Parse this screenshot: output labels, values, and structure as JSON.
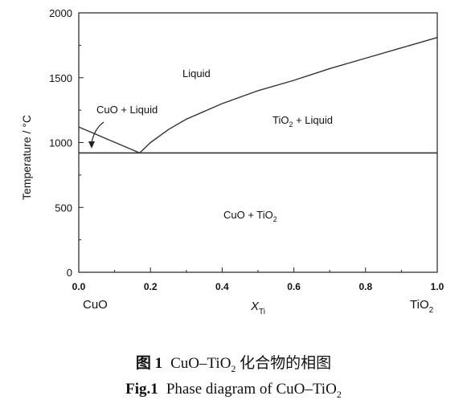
{
  "chart_data": {
    "type": "line",
    "xlabel": "X",
    "xlabel_sub": "Ti",
    "ylabel": "Temperature / °C",
    "xlim": [
      0,
      1.0
    ],
    "ylim": [
      0,
      2000
    ],
    "x_ticks": [
      "0.0",
      "0.2",
      "0.4",
      "0.6",
      "0.8",
      "1.0"
    ],
    "y_ticks": [
      "0",
      "500",
      "1000",
      "1500",
      "2000"
    ],
    "end_labels": {
      "left": "CuO",
      "right_main": "TiO",
      "right_sub": "2"
    },
    "series": [
      {
        "x": [
          0.0,
          0.17
        ],
        "y": [
          1120,
          920
        ]
      },
      {
        "x": [
          0.17,
          0.2,
          0.25,
          0.3,
          0.4,
          0.5,
          0.6,
          0.7,
          0.8,
          0.9,
          1.0
        ],
        "y": [
          920,
          1000,
          1100,
          1180,
          1300,
          1400,
          1480,
          1570,
          1650,
          1730,
          1810
        ]
      },
      {
        "x": [
          0.0,
          1.0
        ],
        "y": [
          920,
          920
        ]
      }
    ],
    "region_labels": {
      "liquid": "Liquid",
      "cuo_liquid": "CuO + Liquid",
      "tio2_liquid_main": "TiO",
      "tio2_liquid_sub": "2",
      "tio2_liquid_rest": " + Liquid",
      "cuo_tio2_main": "CuO + TiO",
      "cuo_tio2_sub": "2"
    }
  },
  "caption": {
    "cn_label": "图 1",
    "cn_text_pre": "CuO–TiO",
    "cn_text_sub": "2",
    "cn_text_post": " 化合物的相图",
    "en_label": "Fig.1",
    "en_text_pre": "Phase diagram of CuO–TiO",
    "en_text_sub": "2"
  }
}
